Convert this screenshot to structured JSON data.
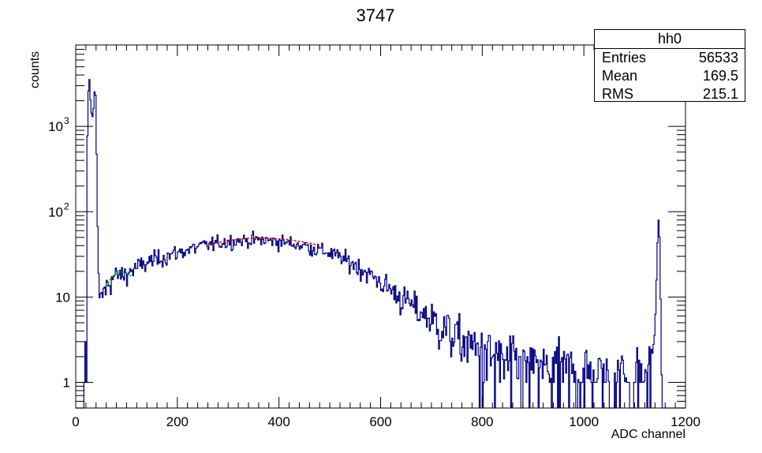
{
  "chart_data": {
    "type": "histogram",
    "title": "3747",
    "xlabel": "ADC channel",
    "ylabel": "counts",
    "xlim": [
      0,
      1200
    ],
    "ylim": [
      0.5,
      9000
    ],
    "y_scale": "log",
    "x_ticks": [
      "0",
      "200",
      "400",
      "600",
      "800",
      "1000",
      "1200"
    ],
    "y_ticks": [
      {
        "value": 1,
        "label": "1"
      },
      {
        "value": 10,
        "label": "10"
      },
      {
        "value": 100,
        "label": "10",
        "exp": "2"
      },
      {
        "value": 1000,
        "label": "10",
        "exp": "3"
      }
    ],
    "bin_width": 2,
    "histogram": {
      "name": "hh0",
      "color": "#00007f",
      "anchors": [
        [
          0,
          0.5
        ],
        [
          16,
          0.5
        ],
        [
          17,
          1
        ],
        [
          19,
          3
        ],
        [
          21,
          1
        ],
        [
          22,
          400
        ],
        [
          24,
          1500
        ],
        [
          26,
          4500
        ],
        [
          28,
          2800
        ],
        [
          30,
          1500
        ],
        [
          33,
          1300
        ],
        [
          36,
          1800
        ],
        [
          38,
          3600
        ],
        [
          40,
          1500
        ],
        [
          42,
          150
        ],
        [
          44,
          30
        ],
        [
          46,
          12
        ],
        [
          48,
          8
        ],
        [
          52,
          10
        ],
        [
          56,
          12
        ],
        [
          60,
          13
        ],
        [
          70,
          16
        ],
        [
          80,
          18
        ],
        [
          90,
          18
        ],
        [
          100,
          19
        ],
        [
          120,
          22
        ],
        [
          150,
          27
        ],
        [
          200,
          33
        ],
        [
          250,
          40
        ],
        [
          300,
          45
        ],
        [
          350,
          47
        ],
        [
          400,
          45
        ],
        [
          450,
          40
        ],
        [
          500,
          33
        ],
        [
          550,
          24
        ],
        [
          600,
          15
        ],
        [
          650,
          9
        ],
        [
          700,
          5.5
        ],
        [
          750,
          3.5
        ],
        [
          800,
          2.2
        ],
        [
          850,
          1.6
        ],
        [
          900,
          1.4
        ],
        [
          950,
          1.3
        ],
        [
          1000,
          1.2
        ],
        [
          1050,
          1.1
        ],
        [
          1100,
          1.1
        ],
        [
          1130,
          1.2
        ],
        [
          1140,
          4
        ],
        [
          1144,
          25
        ],
        [
          1146,
          75
        ],
        [
          1148,
          85
        ],
        [
          1150,
          30
        ],
        [
          1152,
          3
        ],
        [
          1154,
          0.5
        ],
        [
          1200,
          0.5
        ]
      ]
    },
    "fits": [
      {
        "color": "#00c800",
        "x_range": [
          60,
          110
        ],
        "points": [
          [
            60,
            13
          ],
          [
            70,
            17
          ],
          [
            80,
            19
          ],
          [
            90,
            20
          ],
          [
            100,
            19
          ],
          [
            110,
            17.5
          ]
        ]
      },
      {
        "color": "#e00000",
        "x_range": [
          260,
          480
        ],
        "points": [
          [
            260,
            41
          ],
          [
            300,
            46
          ],
          [
            340,
            49
          ],
          [
            380,
            49
          ],
          [
            420,
            47
          ],
          [
            460,
            43
          ],
          [
            480,
            40
          ]
        ]
      }
    ],
    "stats": {
      "name": "hh0",
      "rows": [
        {
          "label": "Entries",
          "value": "56533"
        },
        {
          "label": "Mean",
          "value": "169.5"
        },
        {
          "label": "RMS",
          "value": "215.1"
        }
      ]
    }
  }
}
